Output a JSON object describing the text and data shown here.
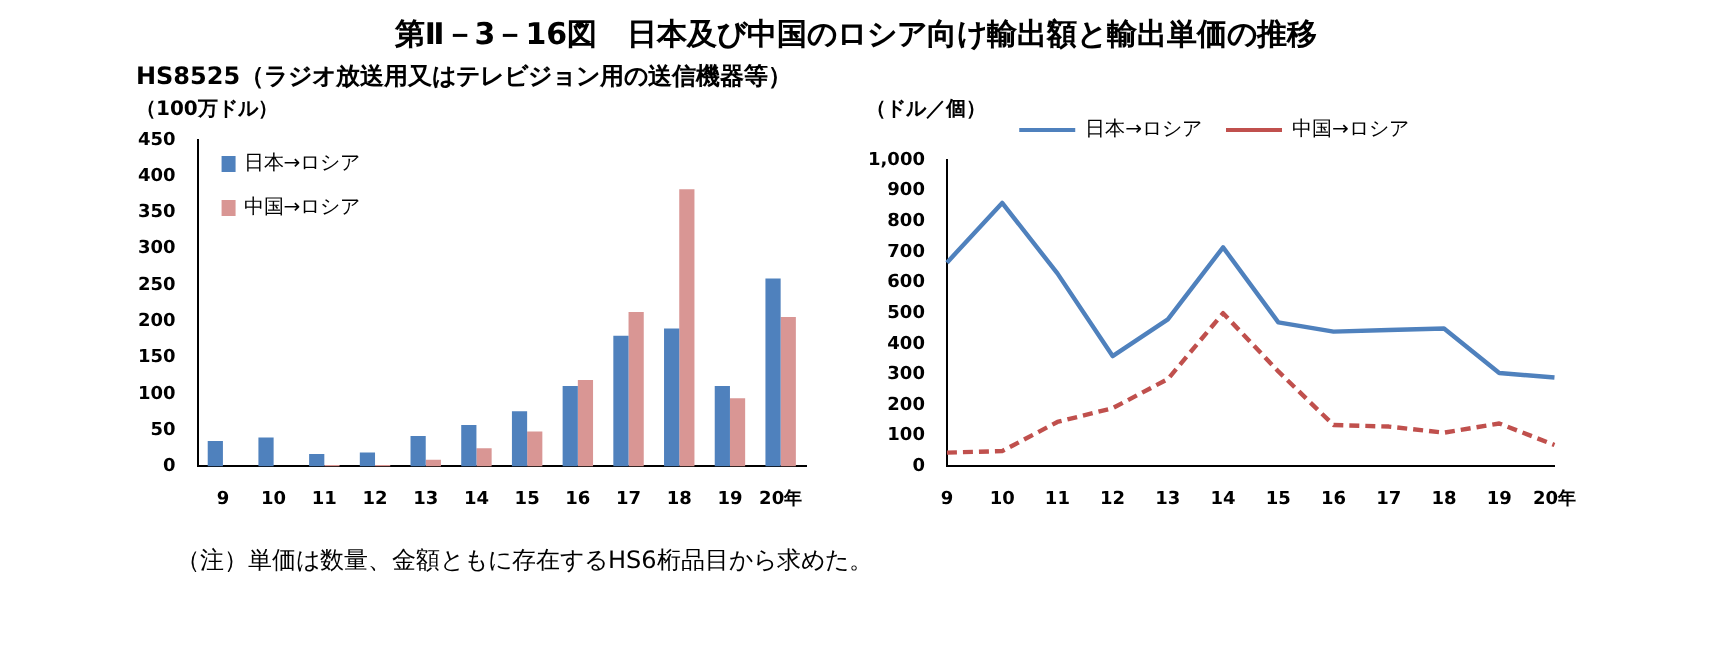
{
  "chart_data": [
    {
      "type": "bar",
      "title": "第Ⅱ－3－16図　日本及び中国のロシア向け輸出額と輸出単価の推移",
      "subtitle": "HS8525（ラジオ放送用又はテレビジョン用の送信機器等）",
      "ylabel": "（100万ドル）",
      "annotations": [
        "（注）単価は数量、金額ともに存在するHS6桁品目から求めた。"
      ],
      "categories": [
        "9",
        "10",
        "11",
        "12",
        "13",
        "14",
        "15",
        "16",
        "17",
        "18",
        "19",
        "20年"
      ],
      "series": [
        {
          "name": "日本→ロシア",
          "color": "#4f81bd",
          "values": [
            35,
            40,
            17,
            19,
            42,
            57,
            76,
            111,
            180,
            190,
            111,
            259
          ]
        },
        {
          "name": "中国→ロシア",
          "color": "#d99694",
          "values": [
            null,
            null,
            2,
            2,
            9,
            25,
            48,
            119,
            213,
            382,
            94,
            206
          ]
        }
      ],
      "ylim": [
        0,
        450
      ],
      "yticks": [
        0,
        50,
        100,
        150,
        200,
        250,
        300,
        350,
        400,
        450
      ],
      "grid": false,
      "legend": "top left"
    },
    {
      "type": "line",
      "ylabel": "（ドル／個）",
      "categories": [
        "9",
        "10",
        "11",
        "12",
        "13",
        "14",
        "15",
        "16",
        "17",
        "18",
        "19",
        "20年"
      ],
      "series": [
        {
          "name": "日本→ロシア",
          "color": "#4f81bd",
          "line_style": "solid",
          "values": [
            665,
            860,
            630,
            360,
            480,
            715,
            470,
            440,
            445,
            450,
            305,
            290
          ]
        },
        {
          "name": "中国→ロシア",
          "color": "#c0504d",
          "line_style": "dashed",
          "values": [
            45,
            50,
            145,
            190,
            285,
            500,
            310,
            135,
            130,
            110,
            140,
            70
          ]
        }
      ],
      "ylim": [
        0,
        1000
      ],
      "yticks": [
        0,
        100,
        200,
        300,
        400,
        500,
        600,
        700,
        800,
        900,
        {
          "value": 1000,
          "label": "1,000"
        }
      ],
      "grid": false,
      "legend": "top",
      "marker": "none"
    }
  ]
}
